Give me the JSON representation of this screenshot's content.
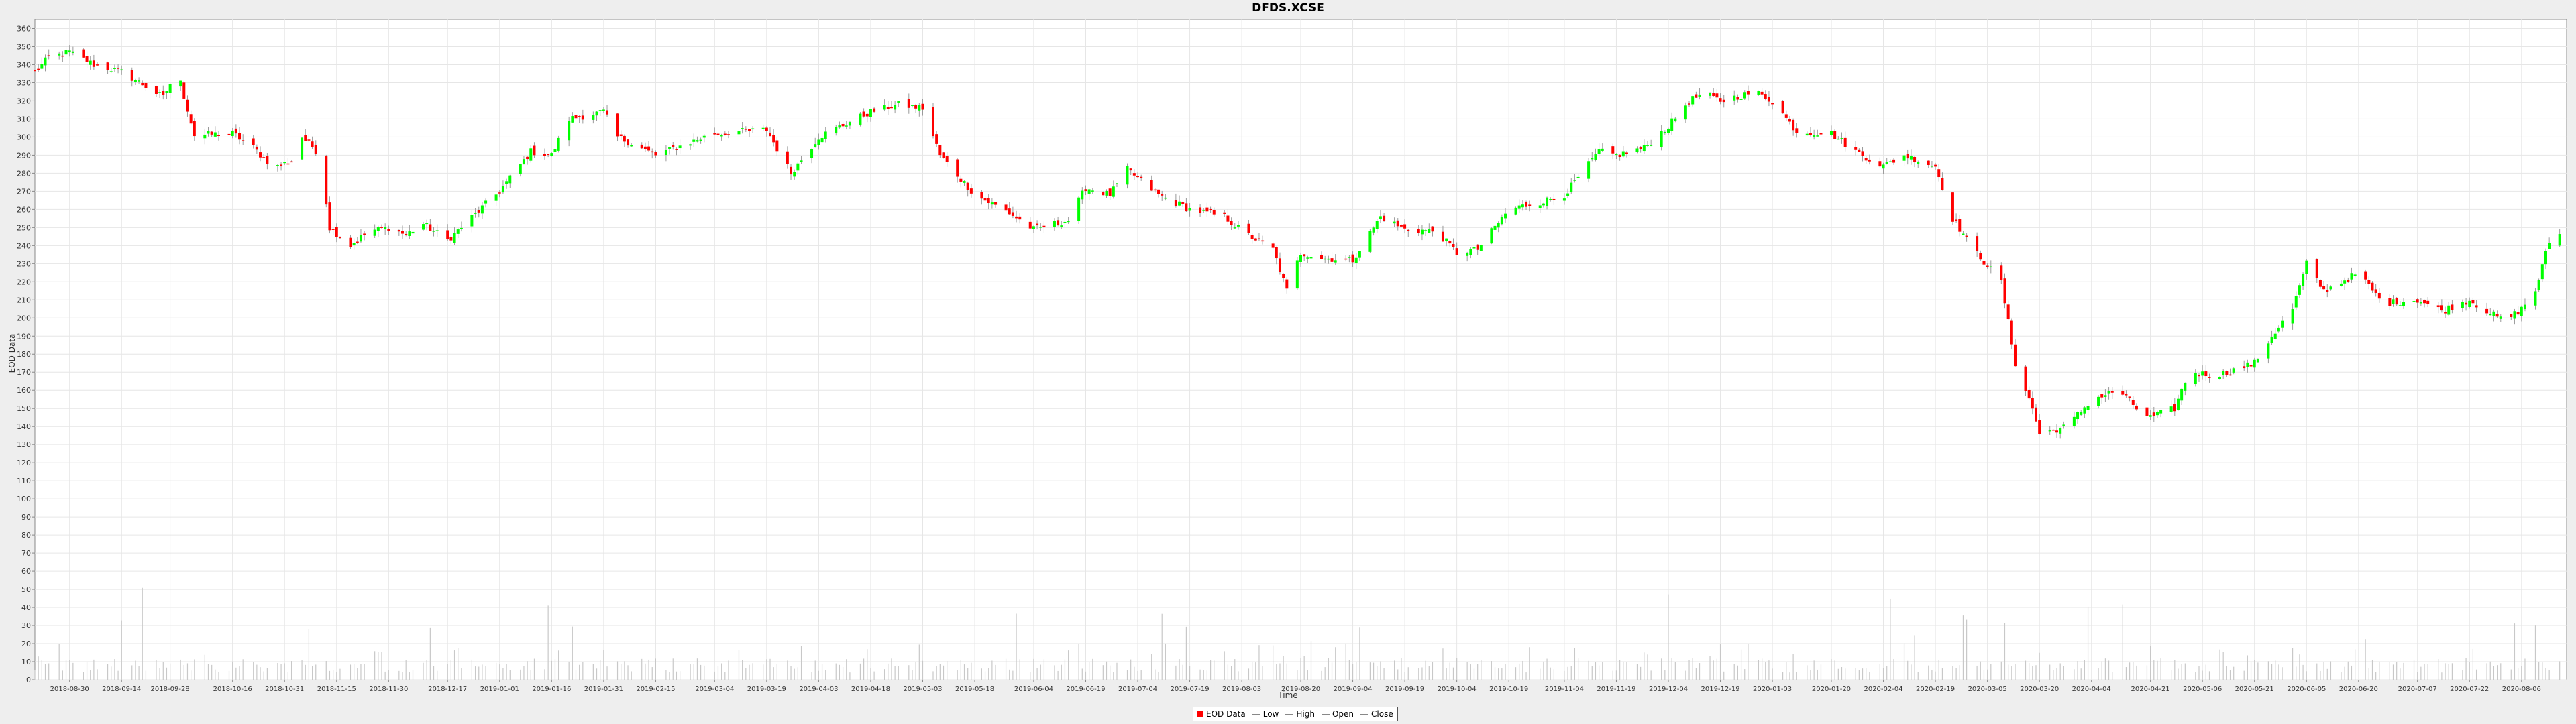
{
  "chart_data": {
    "type": "candlestick",
    "title": "DFDS.XCSE",
    "xlabel": "Time",
    "ylabel": "EOD Data",
    "ylim": [
      0,
      365
    ],
    "yticks": [
      0,
      10,
      20,
      30,
      40,
      50,
      60,
      70,
      80,
      90,
      100,
      110,
      120,
      130,
      140,
      150,
      160,
      170,
      180,
      190,
      200,
      210,
      220,
      230,
      240,
      250,
      260,
      270,
      280,
      290,
      300,
      310,
      320,
      330,
      340,
      350,
      360
    ],
    "xticks": [
      "2018-08-30",
      "2018-09-14",
      "2018-09-28",
      "2018-10-16",
      "2018-10-31",
      "2018-11-15",
      "2018-11-30",
      "2018-12-17",
      "2019-01-01",
      "2019-01-16",
      "2019-01-31",
      "2019-02-15",
      "2019-03-04",
      "2019-03-19",
      "2019-04-03",
      "2019-04-18",
      "2019-05-03",
      "2019-05-18",
      "2019-06-04",
      "2019-06-19",
      "2019-07-04",
      "2019-07-19",
      "2019-08-03",
      "2019-08-20",
      "2019-09-04",
      "2019-09-19",
      "2019-10-04",
      "2019-10-19",
      "2019-11-04",
      "2019-11-19",
      "2019-12-04",
      "2019-12-19",
      "2020-01-03",
      "2020-01-20",
      "2020-02-04",
      "2020-02-19",
      "2020-03-05",
      "2020-03-20",
      "2020-04-04",
      "2020-04-21",
      "2020-05-06",
      "2020-05-21",
      "2020-06-05",
      "2020-06-20",
      "2020-07-07",
      "2020-07-22",
      "2020-08-06"
    ],
    "close_path": [
      [
        "2018-08-20",
        336
      ],
      [
        "2018-08-24",
        344
      ],
      [
        "2018-08-30",
        347
      ],
      [
        "2018-09-06",
        340
      ],
      [
        "2018-09-14",
        336
      ],
      [
        "2018-09-21",
        328
      ],
      [
        "2018-09-26",
        322
      ],
      [
        "2018-09-30",
        337
      ],
      [
        "2018-10-05",
        301
      ],
      [
        "2018-10-16",
        302
      ],
      [
        "2018-10-22",
        294
      ],
      [
        "2018-10-28",
        283
      ],
      [
        "2018-11-02",
        287
      ],
      [
        "2018-11-05",
        300
      ],
      [
        "2018-11-10",
        291
      ],
      [
        "2018-11-13",
        250
      ],
      [
        "2018-11-19",
        240
      ],
      [
        "2018-11-24",
        248
      ],
      [
        "2018-11-30",
        250
      ],
      [
        "2018-12-05",
        246
      ],
      [
        "2018-12-10",
        252
      ],
      [
        "2018-12-17",
        243
      ],
      [
        "2018-12-22",
        252
      ],
      [
        "2019-01-01",
        270
      ],
      [
        "2019-01-10",
        292
      ],
      [
        "2019-01-16",
        290
      ],
      [
        "2019-01-21",
        310
      ],
      [
        "2019-01-31",
        314
      ],
      [
        "2019-02-04",
        300
      ],
      [
        "2019-02-15",
        290
      ],
      [
        "2019-03-04",
        302
      ],
      [
        "2019-03-19",
        304
      ],
      [
        "2019-03-26",
        280
      ],
      [
        "2019-04-03",
        300
      ],
      [
        "2019-04-18",
        314
      ],
      [
        "2019-04-26",
        318
      ],
      [
        "2019-05-03",
        316
      ],
      [
        "2019-05-08",
        290
      ],
      [
        "2019-05-18",
        268
      ],
      [
        "2019-05-28",
        258
      ],
      [
        "2019-06-04",
        249
      ],
      [
        "2019-06-14",
        254
      ],
      [
        "2019-06-19",
        272
      ],
      [
        "2019-06-26",
        268
      ],
      [
        "2019-07-01",
        282
      ],
      [
        "2019-07-10",
        268
      ],
      [
        "2019-07-19",
        260
      ],
      [
        "2019-07-29",
        256
      ],
      [
        "2019-08-03",
        248
      ],
      [
        "2019-08-12",
        238
      ],
      [
        "2019-08-16",
        215
      ],
      [
        "2019-08-20",
        236
      ],
      [
        "2019-08-26",
        233
      ],
      [
        "2019-09-04",
        232
      ],
      [
        "2019-09-12",
        256
      ],
      [
        "2019-09-19",
        249
      ],
      [
        "2019-09-28",
        248
      ],
      [
        "2019-10-04",
        236
      ],
      [
        "2019-10-10",
        238
      ],
      [
        "2019-10-19",
        260
      ],
      [
        "2019-10-28",
        264
      ],
      [
        "2019-11-04",
        268
      ],
      [
        "2019-11-14",
        292
      ],
      [
        "2019-11-19",
        290
      ],
      [
        "2019-11-27",
        294
      ],
      [
        "2019-12-04",
        306
      ],
      [
        "2019-12-10",
        320
      ],
      [
        "2019-12-14",
        324
      ],
      [
        "2019-12-19",
        320
      ],
      [
        "2019-12-29",
        325
      ],
      [
        "2020-01-03",
        320
      ],
      [
        "2020-01-10",
        303
      ],
      [
        "2020-01-20",
        302
      ],
      [
        "2020-01-27",
        292
      ],
      [
        "2020-02-04",
        284
      ],
      [
        "2020-02-10",
        290
      ],
      [
        "2020-02-19",
        284
      ],
      [
        "2020-02-24",
        255
      ],
      [
        "2020-03-01",
        238
      ],
      [
        "2020-03-09",
        220
      ],
      [
        "2020-03-13",
        175
      ],
      [
        "2020-03-18",
        150
      ],
      [
        "2020-03-20",
        136
      ],
      [
        "2020-03-28",
        140
      ],
      [
        "2020-04-04",
        155
      ],
      [
        "2020-04-12",
        160
      ],
      [
        "2020-04-17",
        150
      ],
      [
        "2020-04-21",
        145
      ],
      [
        "2020-04-28",
        150
      ],
      [
        "2020-05-02",
        170
      ],
      [
        "2020-05-10",
        168
      ],
      [
        "2020-05-21",
        175
      ],
      [
        "2020-05-26",
        190
      ],
      [
        "2020-06-01",
        205
      ],
      [
        "2020-06-05",
        230
      ],
      [
        "2020-06-10",
        215
      ],
      [
        "2020-06-20",
        225
      ],
      [
        "2020-06-27",
        208
      ],
      [
        "2020-07-07",
        210
      ],
      [
        "2020-07-14",
        204
      ],
      [
        "2020-07-22",
        210
      ],
      [
        "2020-08-01",
        198
      ],
      [
        "2020-08-06",
        205
      ],
      [
        "2020-08-10",
        215
      ],
      [
        "2020-08-14",
        242
      ],
      [
        "2020-08-17",
        246
      ]
    ],
    "volume_scale": "same axis as price",
    "up_color": "#00ff00",
    "down_color": "#ff0000",
    "volume_color": "#c8c8c8",
    "grid": true,
    "legend_position": "bottom-center",
    "legend": [
      {
        "label": "EOD Data",
        "color": "#ff0000",
        "kind": "box"
      },
      {
        "label": "Low",
        "color": "#888888",
        "kind": "line"
      },
      {
        "label": "High",
        "color": "#888888",
        "kind": "line"
      },
      {
        "label": "Open",
        "color": "#888888",
        "kind": "line"
      },
      {
        "label": "Close",
        "color": "#888888",
        "kind": "line"
      }
    ]
  }
}
